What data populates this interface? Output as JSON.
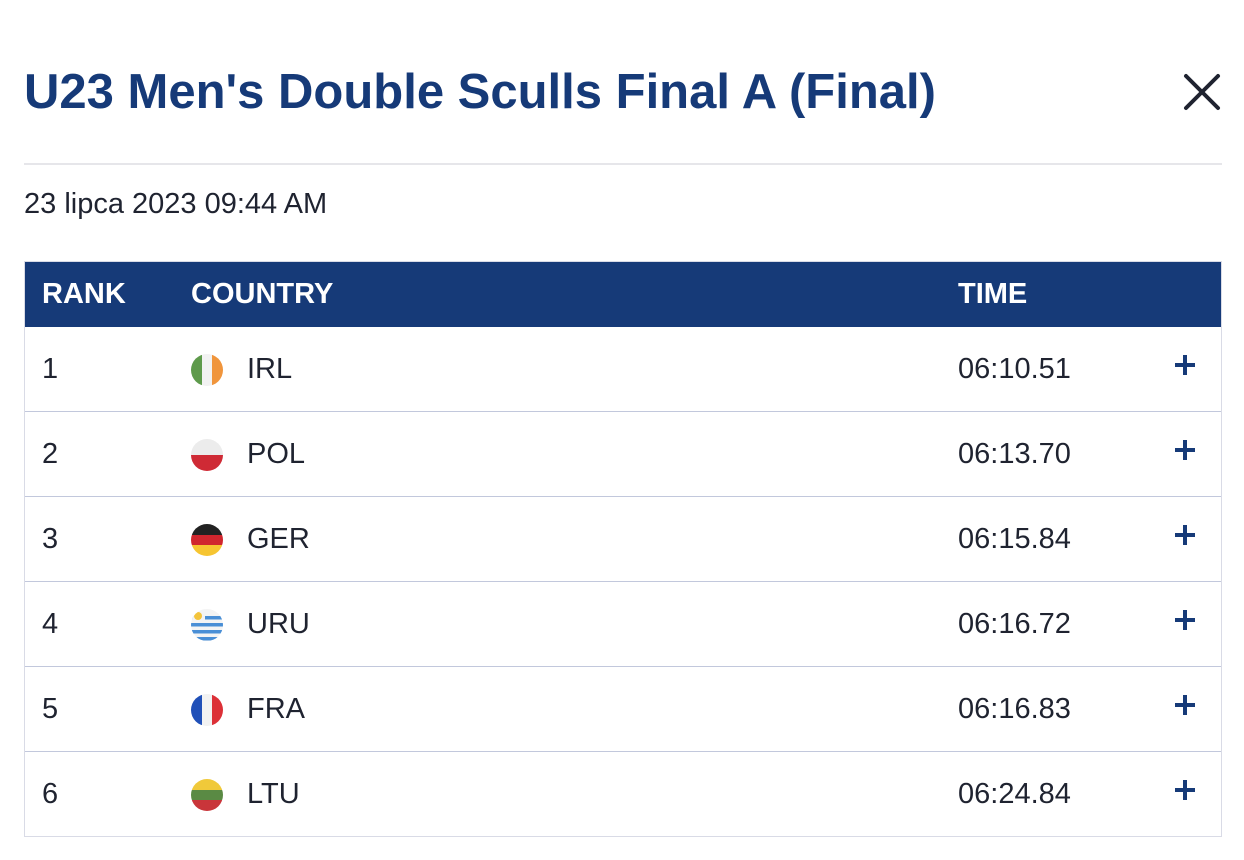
{
  "header": {
    "title": "U23 Men's Double Sculls Final A (Final)",
    "close_icon": "close-icon"
  },
  "date": "23 lipca 2023 09:44 AM",
  "table": {
    "columns": [
      "RANK",
      "COUNTRY",
      "TIME"
    ],
    "rows": [
      {
        "rank": "1",
        "code": "IRL",
        "time": "06:10.51",
        "flag": "ireland-flag-icon"
      },
      {
        "rank": "2",
        "code": "POL",
        "time": "06:13.70",
        "flag": "poland-flag-icon"
      },
      {
        "rank": "3",
        "code": "GER",
        "time": "06:15.84",
        "flag": "germany-flag-icon"
      },
      {
        "rank": "4",
        "code": "URU",
        "time": "06:16.72",
        "flag": "uruguay-flag-icon"
      },
      {
        "rank": "5",
        "code": "FRA",
        "time": "06:16.83",
        "flag": "france-flag-icon"
      },
      {
        "rank": "6",
        "code": "LTU",
        "time": "06:24.84",
        "flag": "lithuania-flag-icon"
      }
    ],
    "expand_icon": "plus-icon"
  },
  "colors": {
    "primary": "#163a78",
    "text": "#1f2330",
    "divider": "#c2c8dc"
  }
}
